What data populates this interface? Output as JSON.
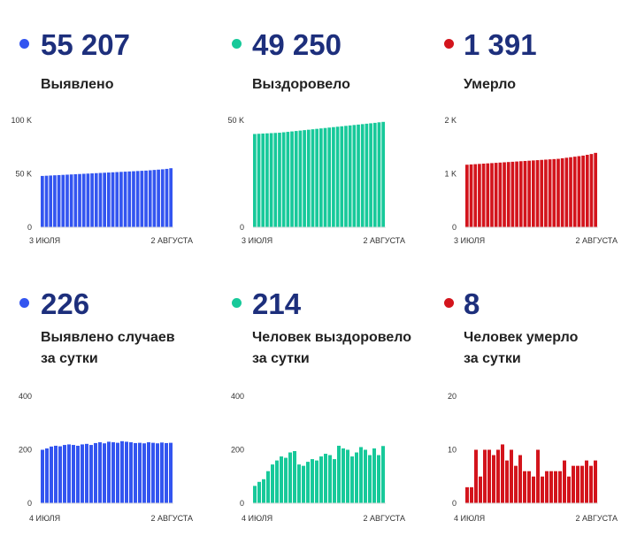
{
  "colors": {
    "blue": "#3355f0",
    "green": "#17c99a",
    "red": "#d3141c",
    "number": "#1d2f7c"
  },
  "panels": [
    {
      "id": "detected-total",
      "color_key": "blue",
      "value": "55 207",
      "label_lines": [
        "Выявлено"
      ],
      "chart_data": {
        "type": "bar",
        "ylim": [
          0,
          100000
        ],
        "y_ticks": [
          "100 K",
          "50 K",
          "0"
        ],
        "x_label_start": "3 ИЮЛЯ",
        "x_label_end": "2 АВГУСТА",
        "values": [
          48000,
          48200,
          48400,
          48600,
          48800,
          49000,
          49200,
          49400,
          49600,
          49800,
          50000,
          50200,
          50400,
          50600,
          50800,
          51000,
          51200,
          51400,
          51600,
          51800,
          52000,
          52200,
          52400,
          52600,
          52800,
          53000,
          53300,
          53600,
          53900,
          54200,
          54600,
          55207
        ]
      }
    },
    {
      "id": "recovered-total",
      "color_key": "green",
      "value": "49 250",
      "label_lines": [
        "Выздоровело"
      ],
      "chart_data": {
        "type": "bar",
        "ylim": [
          0,
          50000
        ],
        "y_ticks": [
          "50 K",
          "0"
        ],
        "x_label_start": "3 ИЮЛЯ",
        "x_label_end": "2 АВГУСТА",
        "values": [
          43600,
          43700,
          43800,
          43900,
          44000,
          44100,
          44200,
          44400,
          44600,
          44800,
          45000,
          45200,
          45400,
          45600,
          45800,
          46000,
          46200,
          46400,
          46600,
          46800,
          47000,
          47200,
          47400,
          47600,
          47800,
          48000,
          48200,
          48400,
          48600,
          48800,
          49050,
          49250
        ]
      }
    },
    {
      "id": "died-total",
      "color_key": "red",
      "value": "1 391",
      "label_lines": [
        "Умерло"
      ],
      "chart_data": {
        "type": "bar",
        "ylim": [
          0,
          2000
        ],
        "y_ticks": [
          "2 K",
          "1 K",
          "0"
        ],
        "x_label_start": "3 ИЮЛЯ",
        "x_label_end": "2 АВГУСТА",
        "values": [
          1170,
          1175,
          1180,
          1185,
          1190,
          1195,
          1200,
          1205,
          1210,
          1215,
          1220,
          1225,
          1230,
          1235,
          1240,
          1245,
          1250,
          1255,
          1260,
          1265,
          1270,
          1275,
          1280,
          1290,
          1300,
          1310,
          1320,
          1330,
          1340,
          1355,
          1370,
          1391
        ]
      }
    },
    {
      "id": "detected-daily",
      "color_key": "blue",
      "value": "226",
      "label_lines": [
        "Выявлено случаев",
        "за сутки"
      ],
      "chart_data": {
        "type": "bar",
        "ylim": [
          0,
          400
        ],
        "y_ticks": [
          "400",
          "200",
          "0"
        ],
        "x_label_start": "4 ИЮЛЯ",
        "x_label_end": "2 АВГУСТА",
        "values": [
          200,
          205,
          212,
          215,
          213,
          218,
          220,
          218,
          215,
          220,
          222,
          218,
          225,
          228,
          224,
          230,
          228,
          226,
          232,
          230,
          228,
          225,
          226,
          224,
          228,
          226,
          224,
          227,
          225,
          226
        ]
      }
    },
    {
      "id": "recovered-daily",
      "color_key": "green",
      "value": "214",
      "label_lines": [
        "Человек выздоровело",
        "за сутки"
      ],
      "chart_data": {
        "type": "bar",
        "ylim": [
          0,
          400
        ],
        "y_ticks": [
          "400",
          "200",
          "0"
        ],
        "x_label_start": "4 ИЮЛЯ",
        "x_label_end": "2 АВГУСТА",
        "values": [
          65,
          80,
          90,
          120,
          145,
          160,
          175,
          170,
          190,
          195,
          145,
          140,
          155,
          165,
          160,
          175,
          185,
          180,
          165,
          215,
          205,
          200,
          175,
          190,
          210,
          200,
          180,
          205,
          180,
          214
        ]
      }
    },
    {
      "id": "died-daily",
      "color_key": "red",
      "value": "8",
      "label_lines": [
        "Человек умерло",
        "за сутки"
      ],
      "chart_data": {
        "type": "bar",
        "ylim": [
          0,
          20
        ],
        "y_ticks": [
          "20",
          "10",
          "0"
        ],
        "x_label_start": "4 ИЮЛЯ",
        "x_label_end": "2 АВГУСТА",
        "values": [
          3,
          3,
          10,
          5,
          10,
          10,
          9,
          10,
          11,
          8,
          10,
          7,
          9,
          6,
          6,
          5,
          10,
          5,
          6,
          6,
          6,
          6,
          8,
          5,
          7,
          7,
          7,
          8,
          7,
          8
        ]
      }
    }
  ]
}
